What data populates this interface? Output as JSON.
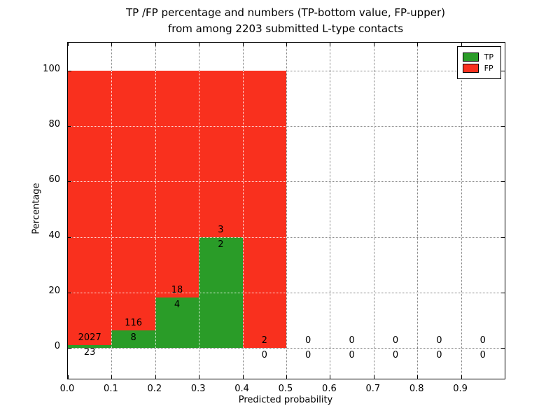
{
  "figure": {
    "title_line1": "TP /FP percentage and numbers (TP-bottom value, FP-upper)",
    "title_line2": "from among 2203 submitted L-type contacts"
  },
  "chart_data": {
    "type": "bar",
    "stacked": true,
    "title": "TP /FP percentage and numbers (TP-bottom value, FP-upper) from among 2203 submitted L-type contacts",
    "xlabel": "Predicted probability",
    "ylabel": "Percentage",
    "xlim": [
      0.0,
      1.0
    ],
    "ylim": [
      -11,
      110
    ],
    "x_tick_labels": [
      "0.0",
      "0.1",
      "0.2",
      "0.3",
      "0.4",
      "0.5",
      "0.6",
      "0.7",
      "0.8",
      "0.9"
    ],
    "y_tick_values": [
      0,
      20,
      40,
      60,
      80,
      100
    ],
    "bin_width": 0.1,
    "grid": "dotted",
    "legend_position": "upper-right",
    "bins": [
      {
        "x0": 0.0,
        "tp": 23,
        "fp": 2027,
        "tp_pct": 1.12,
        "fp_pct": 98.88
      },
      {
        "x0": 0.1,
        "tp": 8,
        "fp": 116,
        "tp_pct": 6.45,
        "fp_pct": 93.55
      },
      {
        "x0": 0.2,
        "tp": 4,
        "fp": 18,
        "tp_pct": 18.18,
        "fp_pct": 81.82
      },
      {
        "x0": 0.3,
        "tp": 2,
        "fp": 3,
        "tp_pct": 40.0,
        "fp_pct": 60.0
      },
      {
        "x0": 0.4,
        "tp": 0,
        "fp": 2,
        "tp_pct": 0.0,
        "fp_pct": 100.0
      },
      {
        "x0": 0.5,
        "tp": 0,
        "fp": 0,
        "tp_pct": 0.0,
        "fp_pct": 0.0
      },
      {
        "x0": 0.6,
        "tp": 0,
        "fp": 0,
        "tp_pct": 0.0,
        "fp_pct": 0.0
      },
      {
        "x0": 0.7,
        "tp": 0,
        "fp": 0,
        "tp_pct": 0.0,
        "fp_pct": 0.0
      },
      {
        "x0": 0.8,
        "tp": 0,
        "fp": 0,
        "tp_pct": 0.0,
        "fp_pct": 0.0
      },
      {
        "x0": 0.9,
        "tp": 0,
        "fp": 0,
        "tp_pct": 0.0,
        "fp_pct": 0.0
      }
    ],
    "legend": [
      {
        "label": "TP",
        "color": "#2a9c28"
      },
      {
        "label": "FP",
        "color": "#f9301e"
      }
    ],
    "colors": {
      "tp": "#2a9c28",
      "fp": "#f9301e",
      "grid": "#808080",
      "grid_over_bars": "rgba(255,255,255,0.9)",
      "axis": "#000000"
    }
  }
}
